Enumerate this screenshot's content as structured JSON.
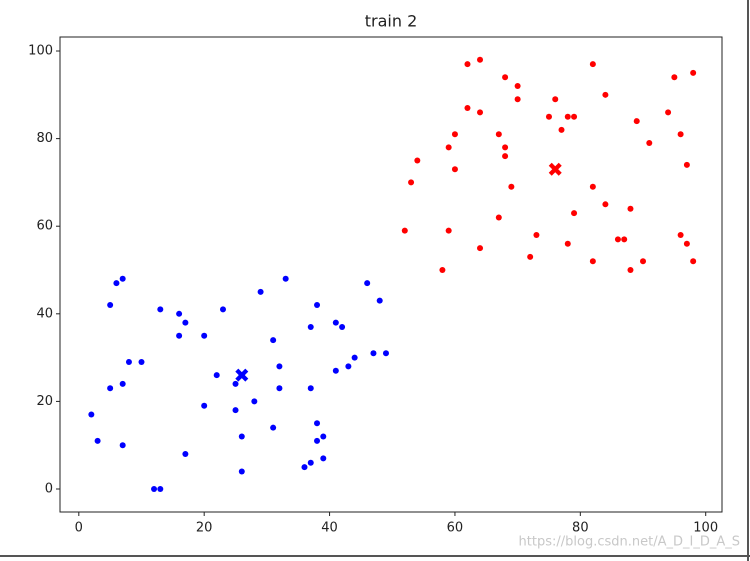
{
  "chart_data": {
    "type": "scatter",
    "title": "train 2",
    "xlim": [
      -3,
      102.6
    ],
    "ylim": [
      -5.25,
      103.2
    ],
    "xticks": [
      0,
      20,
      40,
      60,
      80,
      100
    ],
    "yticks": [
      0,
      20,
      40,
      60,
      80,
      100
    ],
    "grid": false,
    "series": [
      {
        "color": "#0000ff",
        "marker": "o",
        "x": [
          2,
          3,
          5,
          6,
          7,
          5,
          7,
          7,
          8,
          10,
          12,
          13,
          13,
          16,
          16,
          17,
          17,
          20,
          20,
          22,
          23,
          25,
          25,
          26,
          26,
          26,
          28,
          29,
          31,
          31,
          32,
          32,
          33,
          36,
          37,
          37,
          37,
          38,
          38,
          38,
          39,
          39,
          41,
          41,
          42,
          43,
          44,
          46,
          47,
          48,
          49
        ],
        "values": [
          17,
          11,
          42,
          47,
          48,
          23,
          24,
          10,
          29,
          29,
          0,
          0,
          41,
          40,
          35,
          38,
          8,
          35,
          19,
          26,
          41,
          18,
          24,
          26,
          12,
          4,
          20,
          45,
          34,
          14,
          28,
          23,
          48,
          5,
          6,
          37,
          23,
          42,
          15,
          11,
          12,
          7,
          38,
          27,
          37,
          28,
          30,
          47,
          31,
          43,
          31
        ]
      },
      {
        "color": "#ff0000",
        "marker": "o",
        "x": [
          52,
          53,
          54,
          58,
          59,
          59,
          60,
          60,
          62,
          62,
          64,
          64,
          64,
          67,
          67,
          68,
          68,
          68,
          69,
          70,
          70,
          72,
          73,
          75,
          76,
          77,
          78,
          78,
          79,
          79,
          82,
          82,
          82,
          84,
          84,
          86,
          87,
          88,
          88,
          89,
          90,
          91,
          94,
          95,
          96,
          96,
          97,
          97,
          98,
          98
        ],
        "values": [
          59,
          70,
          75,
          50,
          78,
          59,
          81,
          73,
          97,
          87,
          98,
          86,
          55,
          81,
          62,
          94,
          78,
          76,
          69,
          92,
          89,
          53,
          58,
          85,
          89,
          82,
          85,
          56,
          85,
          63,
          97,
          69,
          52,
          90,
          65,
          57,
          57,
          64,
          50,
          84,
          52,
          79,
          86,
          94,
          81,
          58,
          74,
          56,
          95,
          52
        ]
      },
      {
        "color": "#0000ff",
        "marker": "X",
        "x": [
          26
        ],
        "values": [
          26
        ]
      },
      {
        "color": "#ff0000",
        "marker": "X",
        "x": [
          76
        ],
        "values": [
          73
        ]
      }
    ]
  },
  "watermark": "https://blog.csdn.net/A_D_I_D_A_S"
}
